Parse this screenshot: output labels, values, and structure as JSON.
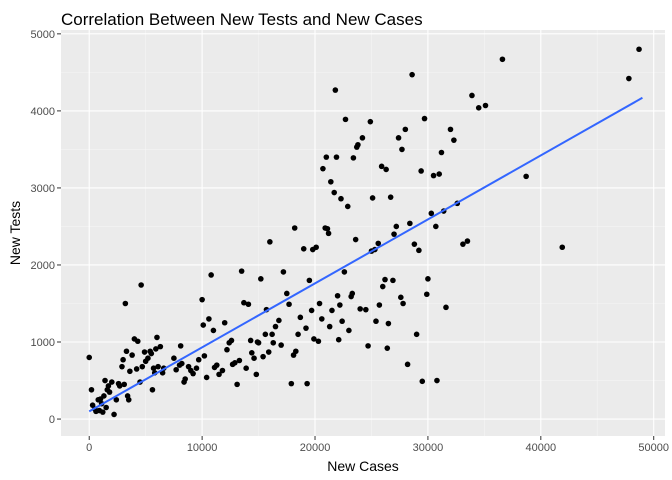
{
  "chart_data": {
    "type": "scatter",
    "title": "Correlation Between New Tests and New Cases",
    "xlabel": "New Cases",
    "ylabel": "New Tests",
    "xlim": [
      -2500,
      51000
    ],
    "ylim": [
      -220,
      5050
    ],
    "xticks": [
      0,
      10000,
      20000,
      30000,
      40000,
      50000
    ],
    "xtick_labels": [
      "0",
      "10000",
      "20000",
      "30000",
      "40000",
      "50000"
    ],
    "yticks": [
      0,
      1000,
      2000,
      3000,
      4000,
      5000
    ],
    "ytick_labels": [
      "0",
      "1000",
      "2000",
      "3000",
      "4000",
      "5000"
    ],
    "grid": true,
    "colors": {
      "panel": "#ebebeb",
      "grid_major": "#ffffff",
      "grid_minor": "#f5f5f5",
      "points": "#000000",
      "trend": "#3366ff",
      "tick": "#333333"
    },
    "trend_line": {
      "x": [
        0,
        49000
      ],
      "y": [
        100,
        4170
      ]
    },
    "points": [
      [
        0,
        800
      ],
      [
        200,
        380
      ],
      [
        300,
        180
      ],
      [
        500,
        130
      ],
      [
        600,
        100
      ],
      [
        800,
        250
      ],
      [
        900,
        110
      ],
      [
        1000,
        260
      ],
      [
        1100,
        200
      ],
      [
        1200,
        90
      ],
      [
        1300,
        300
      ],
      [
        1400,
        500
      ],
      [
        1500,
        150
      ],
      [
        1600,
        380
      ],
      [
        1700,
        430
      ],
      [
        1800,
        350
      ],
      [
        2000,
        480
      ],
      [
        2200,
        60
      ],
      [
        2400,
        250
      ],
      [
        2600,
        460
      ],
      [
        2700,
        430
      ],
      [
        2900,
        680
      ],
      [
        3000,
        770
      ],
      [
        3100,
        450
      ],
      [
        3200,
        1500
      ],
      [
        3300,
        880
      ],
      [
        3400,
        300
      ],
      [
        3500,
        250
      ],
      [
        3600,
        620
      ],
      [
        3800,
        830
      ],
      [
        4000,
        1040
      ],
      [
        4200,
        650
      ],
      [
        4300,
        1010
      ],
      [
        4500,
        480
      ],
      [
        4600,
        1740
      ],
      [
        4700,
        680
      ],
      [
        4900,
        870
      ],
      [
        5000,
        750
      ],
      [
        5200,
        790
      ],
      [
        5400,
        880
      ],
      [
        5500,
        850
      ],
      [
        5600,
        380
      ],
      [
        5700,
        660
      ],
      [
        5800,
        600
      ],
      [
        5900,
        910
      ],
      [
        6000,
        1060
      ],
      [
        6100,
        680
      ],
      [
        6300,
        940
      ],
      [
        6500,
        600
      ],
      [
        6600,
        660
      ],
      [
        7500,
        790
      ],
      [
        7700,
        640
      ],
      [
        8000,
        700
      ],
      [
        8100,
        950
      ],
      [
        8200,
        720
      ],
      [
        8400,
        480
      ],
      [
        8500,
        520
      ],
      [
        8800,
        680
      ],
      [
        9000,
        630
      ],
      [
        9200,
        590
      ],
      [
        9500,
        660
      ],
      [
        9700,
        770
      ],
      [
        10000,
        1550
      ],
      [
        10100,
        1220
      ],
      [
        10200,
        820
      ],
      [
        10400,
        540
      ],
      [
        10600,
        1300
      ],
      [
        10800,
        1870
      ],
      [
        11000,
        1150
      ],
      [
        11100,
        670
      ],
      [
        11300,
        700
      ],
      [
        11500,
        580
      ],
      [
        11800,
        630
      ],
      [
        12000,
        1250
      ],
      [
        12200,
        900
      ],
      [
        12400,
        990
      ],
      [
        12600,
        1020
      ],
      [
        12700,
        710
      ],
      [
        12900,
        730
      ],
      [
        13100,
        450
      ],
      [
        13300,
        760
      ],
      [
        13500,
        1920
      ],
      [
        13700,
        1510
      ],
      [
        13900,
        660
      ],
      [
        14100,
        1490
      ],
      [
        14300,
        1020
      ],
      [
        14400,
        860
      ],
      [
        14600,
        790
      ],
      [
        14800,
        580
      ],
      [
        14900,
        1000
      ],
      [
        15000,
        990
      ],
      [
        15200,
        1820
      ],
      [
        15400,
        810
      ],
      [
        15600,
        1100
      ],
      [
        15700,
        1420
      ],
      [
        15900,
        870
      ],
      [
        16000,
        2300
      ],
      [
        16200,
        1100
      ],
      [
        16300,
        990
      ],
      [
        16500,
        1200
      ],
      [
        16800,
        1280
      ],
      [
        17000,
        960
      ],
      [
        17200,
        1910
      ],
      [
        17500,
        1630
      ],
      [
        17700,
        1490
      ],
      [
        17900,
        460
      ],
      [
        18100,
        830
      ],
      [
        18200,
        2480
      ],
      [
        18300,
        880
      ],
      [
        18500,
        1100
      ],
      [
        18700,
        1320
      ],
      [
        19000,
        2210
      ],
      [
        19200,
        1180
      ],
      [
        19300,
        460
      ],
      [
        19500,
        1800
      ],
      [
        19700,
        1410
      ],
      [
        19800,
        2200
      ],
      [
        19900,
        1040
      ],
      [
        20100,
        2230
      ],
      [
        20300,
        1010
      ],
      [
        20400,
        1500
      ],
      [
        20600,
        1300
      ],
      [
        20700,
        3250
      ],
      [
        20900,
        2480
      ],
      [
        21000,
        3400
      ],
      [
        21100,
        2470
      ],
      [
        21200,
        2410
      ],
      [
        21300,
        1200
      ],
      [
        21400,
        3080
      ],
      [
        21500,
        1410
      ],
      [
        21700,
        2940
      ],
      [
        21800,
        4270
      ],
      [
        21900,
        3400
      ],
      [
        22000,
        1600
      ],
      [
        22100,
        1030
      ],
      [
        22200,
        1480
      ],
      [
        22300,
        2860
      ],
      [
        22400,
        1270
      ],
      [
        22600,
        1910
      ],
      [
        22700,
        3890
      ],
      [
        22900,
        2760
      ],
      [
        23000,
        1150
      ],
      [
        23200,
        1590
      ],
      [
        23300,
        1630
      ],
      [
        23400,
        3390
      ],
      [
        23600,
        2330
      ],
      [
        23700,
        3530
      ],
      [
        23800,
        3560
      ],
      [
        24000,
        1430
      ],
      [
        24200,
        3650
      ],
      [
        24500,
        1420
      ],
      [
        24700,
        950
      ],
      [
        24900,
        3860
      ],
      [
        25000,
        2180
      ],
      [
        25100,
        2870
      ],
      [
        25300,
        2200
      ],
      [
        25400,
        1270
      ],
      [
        25600,
        2280
      ],
      [
        25700,
        1480
      ],
      [
        25900,
        3280
      ],
      [
        26000,
        1720
      ],
      [
        26200,
        1810
      ],
      [
        26300,
        3240
      ],
      [
        26400,
        920
      ],
      [
        26500,
        1240
      ],
      [
        26700,
        2880
      ],
      [
        26900,
        1800
      ],
      [
        27000,
        2400
      ],
      [
        27200,
        2500
      ],
      [
        27400,
        3650
      ],
      [
        27600,
        1580
      ],
      [
        27700,
        3500
      ],
      [
        27800,
        1500
      ],
      [
        28000,
        3760
      ],
      [
        28200,
        710
      ],
      [
        28400,
        2540
      ],
      [
        28600,
        4470
      ],
      [
        28800,
        2270
      ],
      [
        29000,
        1100
      ],
      [
        29200,
        2190
      ],
      [
        29400,
        3220
      ],
      [
        29500,
        490
      ],
      [
        29700,
        3900
      ],
      [
        29900,
        1620
      ],
      [
        30000,
        1820
      ],
      [
        30300,
        2670
      ],
      [
        30500,
        3160
      ],
      [
        30700,
        2500
      ],
      [
        30800,
        500
      ],
      [
        31000,
        3180
      ],
      [
        31200,
        3460
      ],
      [
        31400,
        2700
      ],
      [
        31600,
        1450
      ],
      [
        32000,
        3760
      ],
      [
        32300,
        3620
      ],
      [
        32600,
        2800
      ],
      [
        33100,
        2270
      ],
      [
        33500,
        2310
      ],
      [
        33900,
        4200
      ],
      [
        34500,
        4040
      ],
      [
        35100,
        4070
      ],
      [
        36600,
        4670
      ],
      [
        38700,
        3150
      ],
      [
        41900,
        2230
      ],
      [
        47800,
        4420
      ],
      [
        48700,
        4800
      ]
    ]
  }
}
